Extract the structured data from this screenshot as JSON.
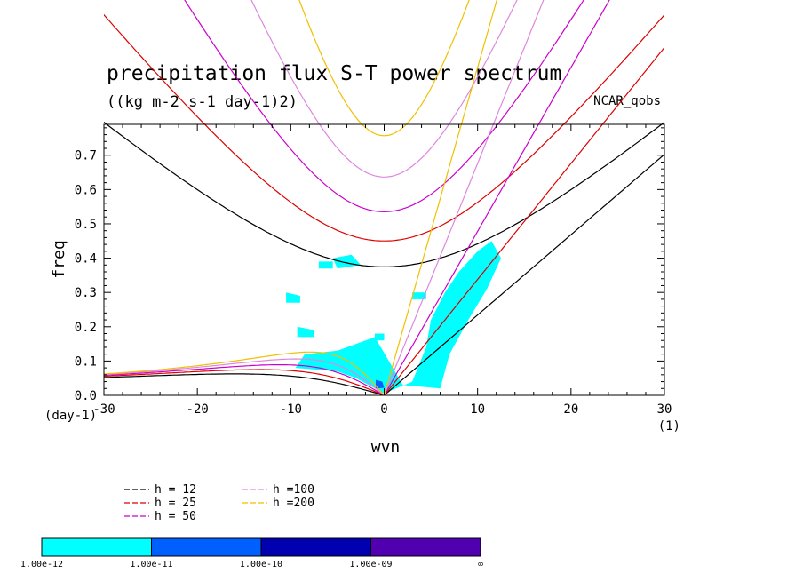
{
  "chart_data": {
    "type": "contour",
    "title": "precipitation flux S-T power spectrum",
    "subtitle": "((kg m-2 s-1 day-1)2)",
    "dataset_label": "NCAR_qobs",
    "xlabel": "wvn",
    "ylabel": "freq",
    "x_unit": "(1)",
    "y_unit": "(day-1)",
    "xlim": [
      -30,
      30
    ],
    "ylim": [
      0,
      0.79
    ],
    "x_ticks": [
      "-30",
      "-20",
      "-10",
      "0",
      "10",
      "20",
      "30"
    ],
    "x_tick_values": [
      -30,
      -20,
      -10,
      0,
      10,
      20,
      30
    ],
    "y_ticks": [
      "0.0",
      "0.1",
      "0.2",
      "0.3",
      "0.4",
      "0.5",
      "0.6",
      "0.7"
    ],
    "y_tick_values": [
      0,
      0.1,
      0.2,
      0.3,
      0.4,
      0.5,
      0.6,
      0.7
    ],
    "dispersion_curves": [
      {
        "name": "h = 12",
        "h": 12,
        "color": "#000000"
      },
      {
        "name": "h = 25",
        "h": 25,
        "color": "#dd0000"
      },
      {
        "name": "h = 50",
        "h": 50,
        "color": "#cc00cc"
      },
      {
        "name": "h =100",
        "h": 100,
        "color": "#dd88dd"
      },
      {
        "name": "h =200",
        "h": 200,
        "color": "#f0c000"
      }
    ],
    "contour_levels": [
      "1.00e-12",
      "1.00e-11",
      "1.00e-10",
      "1.00e-09",
      "∞"
    ],
    "contour_colors": [
      "#00ffff",
      "#0060ff",
      "#0000b0",
      "#5000b0"
    ],
    "shaded_regions": [
      {
        "level": 0,
        "points": [
          [
            -5,
            0.07
          ],
          [
            -3,
            0.05
          ],
          [
            0,
            0.006
          ],
          [
            3,
            0.04
          ],
          [
            4.5,
            0.14
          ],
          [
            5,
            0.22
          ],
          [
            6.5,
            0.3
          ],
          [
            8,
            0.36
          ],
          [
            10,
            0.42
          ],
          [
            11.5,
            0.45
          ],
          [
            12.5,
            0.4
          ],
          [
            11,
            0.31
          ],
          [
            9,
            0.22
          ],
          [
            7,
            0.12
          ],
          [
            6,
            0.02
          ],
          [
            2,
            0.03
          ],
          [
            0.5,
            0.1
          ],
          [
            -1,
            0.17
          ],
          [
            -5,
            0.13
          ],
          [
            -8.5,
            0.12
          ],
          [
            -9.5,
            0.08
          ]
        ]
      },
      {
        "level": 0,
        "points": [
          [
            -9.3,
            0.2
          ],
          [
            -7.5,
            0.19
          ],
          [
            -7.5,
            0.17
          ],
          [
            -9.3,
            0.17
          ]
        ]
      },
      {
        "level": 0,
        "points": [
          [
            -10.5,
            0.3
          ],
          [
            -9,
            0.29
          ],
          [
            -9,
            0.27
          ],
          [
            -10.5,
            0.27
          ]
        ]
      },
      {
        "level": 0,
        "points": [
          [
            -5.5,
            0.4
          ],
          [
            -3.5,
            0.41
          ],
          [
            -2.5,
            0.38
          ],
          [
            -5,
            0.37
          ]
        ]
      },
      {
        "level": 0,
        "points": [
          [
            -7,
            0.39
          ],
          [
            -5.5,
            0.39
          ],
          [
            -5.5,
            0.37
          ],
          [
            -7,
            0.37
          ]
        ]
      },
      {
        "level": 0,
        "points": [
          [
            3,
            0.3
          ],
          [
            4.5,
            0.3
          ],
          [
            4.5,
            0.28
          ],
          [
            3,
            0.28
          ]
        ]
      },
      {
        "level": 0,
        "points": [
          [
            -1,
            0.18
          ],
          [
            0,
            0.18
          ],
          [
            0,
            0.16
          ],
          [
            -1,
            0.16
          ]
        ]
      },
      {
        "level": 1,
        "points": [
          [
            -0.9,
            0.045
          ],
          [
            -0.2,
            0.04
          ],
          [
            0,
            0.022
          ],
          [
            -0.9,
            0.02
          ]
        ]
      }
    ]
  }
}
